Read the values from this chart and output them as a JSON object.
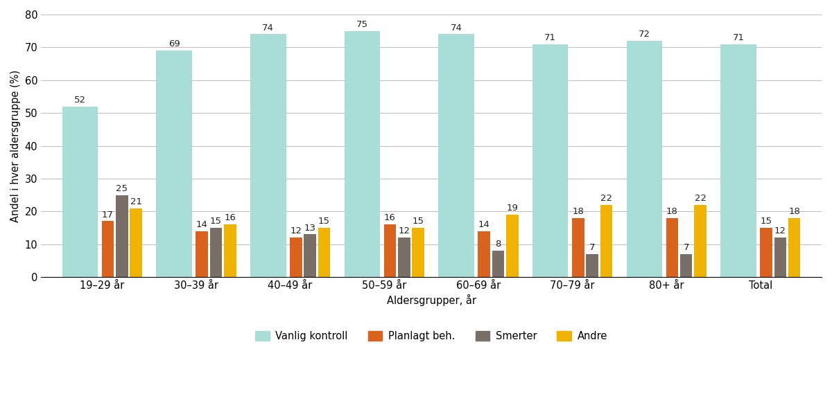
{
  "categories": [
    "19–29 år",
    "30–39 år",
    "40–49 år",
    "50–59 år",
    "60–69 år",
    "70–79 år",
    "80+ år",
    "Total"
  ],
  "series": {
    "Vanlig kontroll": [
      52,
      69,
      74,
      75,
      74,
      71,
      72,
      71
    ],
    "Planlagt beh.": [
      17,
      14,
      12,
      16,
      14,
      18,
      18,
      15
    ],
    "Smerter": [
      25,
      15,
      13,
      12,
      8,
      7,
      7,
      12
    ],
    "Andre": [
      21,
      16,
      15,
      15,
      19,
      22,
      22,
      18
    ]
  },
  "colors": {
    "Vanlig kontroll": "#a8ddd8",
    "Planlagt beh.": "#d9621e",
    "Smerter": "#7a6f68",
    "Andre": "#f0b400"
  },
  "ylabel": "Andel i hver aldersgruppe (%)",
  "xlabel": "Aldersgrupper, år",
  "ylim": [
    0,
    80
  ],
  "yticks": [
    0,
    10,
    20,
    30,
    40,
    50,
    60,
    70,
    80
  ],
  "wide_bar_width": 0.38,
  "narrow_bar_width": 0.13,
  "background_color": "#ffffff",
  "grid_color": "#bbbbbb",
  "label_fontsize": 9.5,
  "axis_fontsize": 10.5,
  "legend_fontsize": 10.5
}
